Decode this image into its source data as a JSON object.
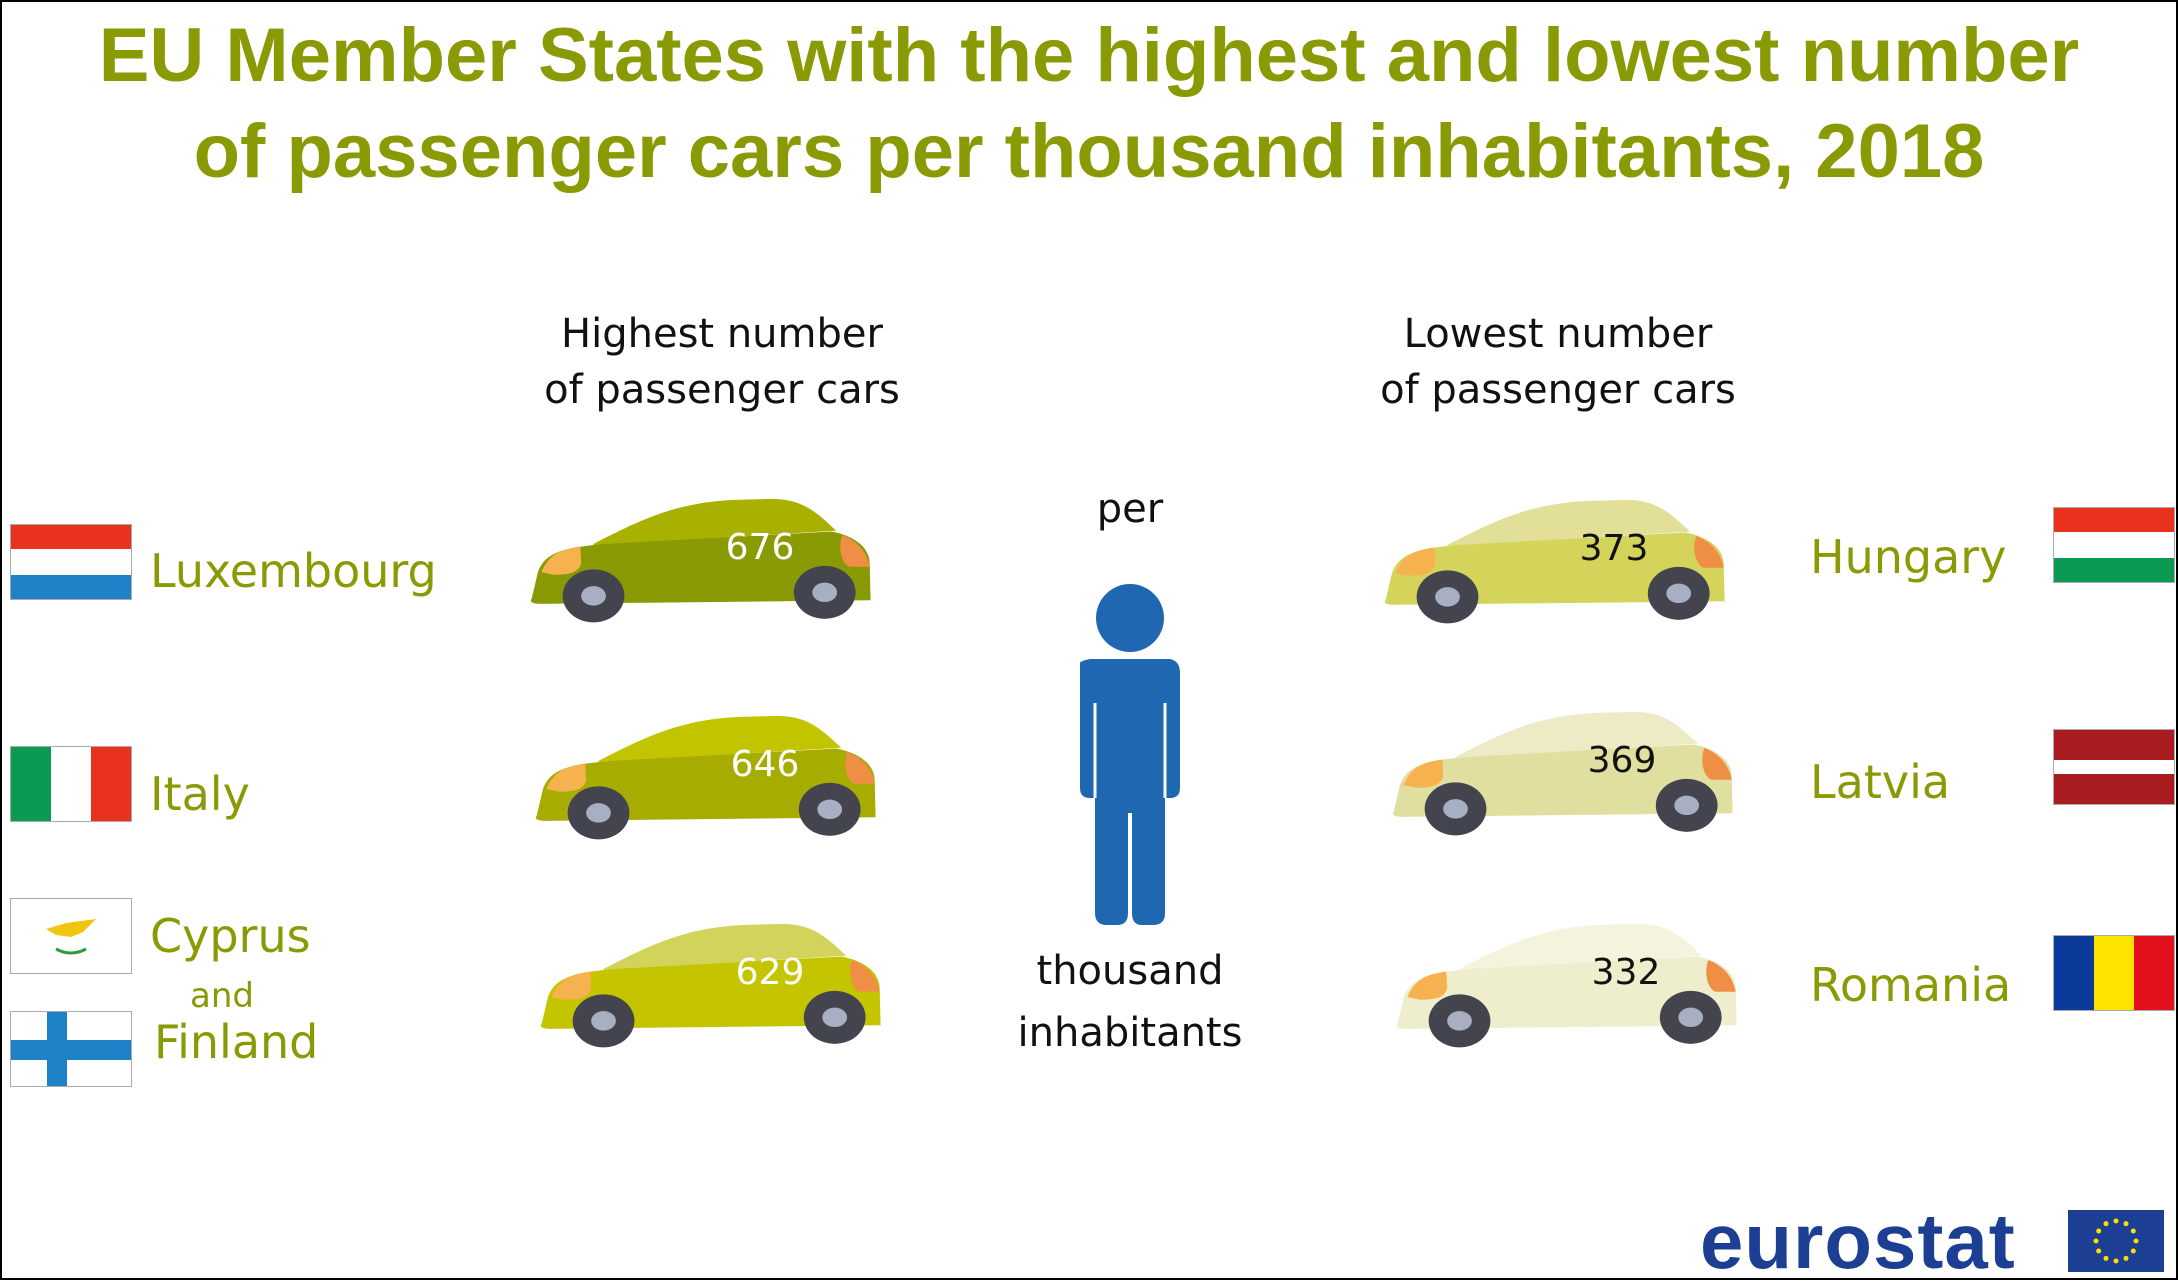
{
  "title": [
    "EU Member States with the highest and lowest number",
    "of passenger cars per thousand inhabitants, 2018"
  ],
  "highest": {
    "header": [
      "Highest number",
      "of passenger cars"
    ],
    "rows": [
      {
        "country": "Luxembourg",
        "value": "676"
      },
      {
        "country": "Italy",
        "value": "646"
      },
      {
        "country": "Cyprus",
        "and": "and",
        "country2": "Finland",
        "value": "629"
      }
    ]
  },
  "lowest": {
    "header": [
      "Lowest number",
      "of passenger cars"
    ],
    "rows": [
      {
        "country": "Hungary",
        "value": "373"
      },
      {
        "country": "Latvia",
        "value": "369"
      },
      {
        "country": "Romania",
        "value": "332"
      }
    ]
  },
  "center": {
    "per": "per",
    "thousand": "thousand",
    "inhabitants": "inhabitants"
  },
  "logo": {
    "text": "eurostat"
  },
  "colors": {
    "accent": "#8a9a05",
    "person": "#1f67b1",
    "logo": "#1c3f94"
  }
}
